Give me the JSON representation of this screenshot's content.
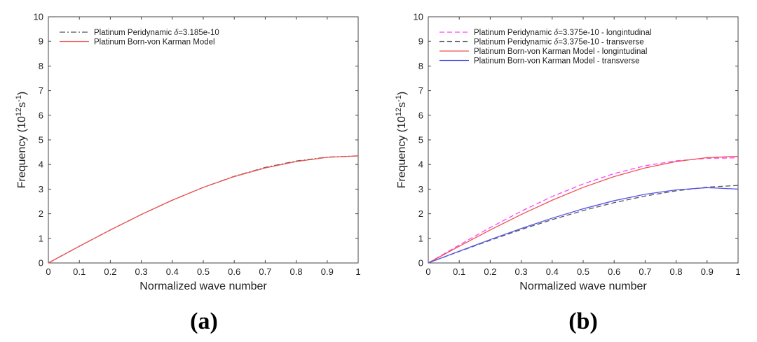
{
  "chart_data": [
    {
      "type": "line",
      "panel_label": "(a)",
      "xlabel": "Normalized wave number",
      "ylabel": "Frequency (10",
      "ylabel_sup1": "12",
      "ylabel_mid": "s",
      "ylabel_sup2": "-1",
      "ylabel_end": ")",
      "xlim": [
        0,
        1
      ],
      "ylim": [
        0,
        10
      ],
      "xticks": [
        "0",
        "0.1",
        "0.2",
        "0.3",
        "0.4",
        "0.5",
        "0.6",
        "0.7",
        "0.8",
        "0.9",
        "1"
      ],
      "yticks": [
        "0",
        "1",
        "2",
        "3",
        "4",
        "5",
        "6",
        "7",
        "8",
        "9",
        "10"
      ],
      "legend_position": "top-left",
      "series": [
        {
          "name_prefix": "Platinum Peridynamic ",
          "name_symbol": "δ",
          "name_suffix": "=3.185e-10",
          "color": "#555555",
          "dash": "dashdot",
          "x": [
            0,
            0.1,
            0.2,
            0.3,
            0.4,
            0.5,
            0.6,
            0.7,
            0.8,
            0.9,
            1.0
          ],
          "y": [
            0,
            0.68,
            1.34,
            1.97,
            2.55,
            3.07,
            3.52,
            3.88,
            4.14,
            4.3,
            4.35
          ]
        },
        {
          "name": "Platinum Born-von Karman Model",
          "color": "#f05050",
          "dash": "solid",
          "x": [
            0,
            0.1,
            0.2,
            0.3,
            0.4,
            0.5,
            0.6,
            0.7,
            0.8,
            0.9,
            1.0
          ],
          "y": [
            0,
            0.68,
            1.34,
            1.97,
            2.55,
            3.07,
            3.51,
            3.86,
            4.12,
            4.29,
            4.35
          ]
        }
      ]
    },
    {
      "type": "line",
      "panel_label": "(b)",
      "xlabel": "Normalized wave number",
      "ylabel": "Frequency (10",
      "ylabel_sup1": "12",
      "ylabel_mid": "s",
      "ylabel_sup2": "-1",
      "ylabel_end": ")",
      "xlim": [
        0,
        1
      ],
      "ylim": [
        0,
        10
      ],
      "xticks": [
        "0",
        "0.1",
        "0.2",
        "0.3",
        "0.4",
        "0.5",
        "0.6",
        "0.7",
        "0.8",
        "0.9",
        "1"
      ],
      "yticks": [
        "0",
        "1",
        "2",
        "3",
        "4",
        "5",
        "6",
        "7",
        "8",
        "9",
        "10"
      ],
      "legend_position": "top-left",
      "series": [
        {
          "name_prefix": "Platinum Peridynamic ",
          "name_symbol": "δ",
          "name_suffix": "=3.375e-10 - longintudinal",
          "color": "#ff44ff",
          "dash": "dashed",
          "x": [
            0,
            0.1,
            0.2,
            0.3,
            0.4,
            0.5,
            0.6,
            0.7,
            0.8,
            0.9,
            1.0
          ],
          "y": [
            0,
            0.73,
            1.44,
            2.1,
            2.7,
            3.21,
            3.63,
            3.95,
            4.15,
            4.25,
            4.27
          ]
        },
        {
          "name_prefix": "Platinum Peridynamic ",
          "name_symbol": "δ",
          "name_suffix": "=3.375e-10 - transverse",
          "color": "#555555",
          "dash": "dashed",
          "x": [
            0,
            0.1,
            0.2,
            0.3,
            0.4,
            0.5,
            0.6,
            0.7,
            0.8,
            0.9,
            1.0
          ],
          "y": [
            0,
            0.47,
            0.92,
            1.36,
            1.76,
            2.13,
            2.45,
            2.72,
            2.93,
            3.08,
            3.15
          ]
        },
        {
          "name": "Platinum Born-von Karman Model - longintudinal",
          "color": "#f05050",
          "dash": "solid",
          "x": [
            0,
            0.1,
            0.2,
            0.3,
            0.4,
            0.5,
            0.6,
            0.7,
            0.8,
            0.9,
            1.0
          ],
          "y": [
            0,
            0.68,
            1.34,
            1.97,
            2.55,
            3.07,
            3.51,
            3.86,
            4.12,
            4.28,
            4.33
          ]
        },
        {
          "name": "Platinum Born-von Karman Model - transverse",
          "color": "#5555ee",
          "dash": "solid",
          "x": [
            0,
            0.1,
            0.2,
            0.3,
            0.4,
            0.5,
            0.6,
            0.7,
            0.8,
            0.9,
            1.0
          ],
          "y": [
            0,
            0.48,
            0.95,
            1.4,
            1.82,
            2.2,
            2.53,
            2.79,
            2.97,
            3.06,
            3.0
          ]
        }
      ]
    }
  ]
}
